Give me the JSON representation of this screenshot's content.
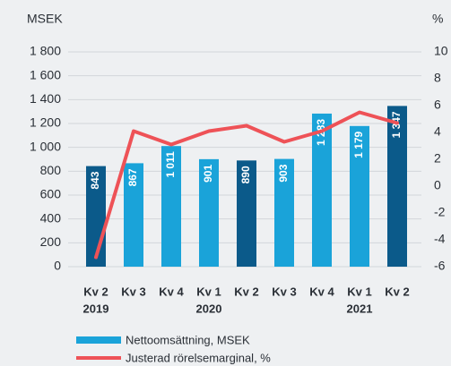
{
  "chart_data": {
    "type": "bar_line",
    "y_axis_label": "MSEK",
    "y2_axis_label": "%",
    "categories": [
      "Kv 2",
      "Kv 3",
      "Kv 4",
      "Kv 1",
      "Kv 2",
      "Kv 3",
      "Kv 4",
      "Kv 1",
      "Kv 2"
    ],
    "years": [
      "2019",
      null,
      null,
      "2020",
      null,
      null,
      null,
      "2021",
      null
    ],
    "series": [
      {
        "name": "Nettoomsättning, MSEK",
        "color": "#1aa3d9",
        "colors": [
          "#0b5a8a",
          "#1aa3d9",
          "#1aa3d9",
          "#1aa3d9",
          "#0b5a8a",
          "#1aa3d9",
          "#1aa3d9",
          "#1aa3d9",
          "#0b5a8a"
        ],
        "values": [
          843,
          867,
          1011,
          901,
          890,
          903,
          1283,
          1179,
          1347
        ],
        "value_labels": [
          "843",
          "867",
          "1 011",
          "901",
          "890",
          "903",
          "1 283",
          "1 179",
          "1 347"
        ]
      },
      {
        "name": "Justerad rörelsemarginal, %",
        "color": "#ee5257",
        "axis": "y2",
        "values": [
          -5.3,
          4.1,
          3.1,
          4.1,
          4.5,
          3.3,
          4.1,
          5.5,
          4.7
        ]
      }
    ],
    "ylim": [
      0,
      1800
    ],
    "yticks": [
      0,
      200,
      400,
      600,
      800,
      {
        "value": 1000,
        "label": "1 000"
      },
      {
        "value": 1200,
        "label": "1 200"
      },
      {
        "value": 1400,
        "label": "1 400"
      },
      {
        "value": 1600,
        "label": "1 600"
      },
      {
        "value": 1800,
        "label": "1 800"
      }
    ],
    "y2lim": [
      -6,
      10
    ],
    "y2ticks": [
      -6,
      -4,
      -2,
      0,
      2,
      4,
      6,
      8,
      10
    ],
    "grid": true
  }
}
